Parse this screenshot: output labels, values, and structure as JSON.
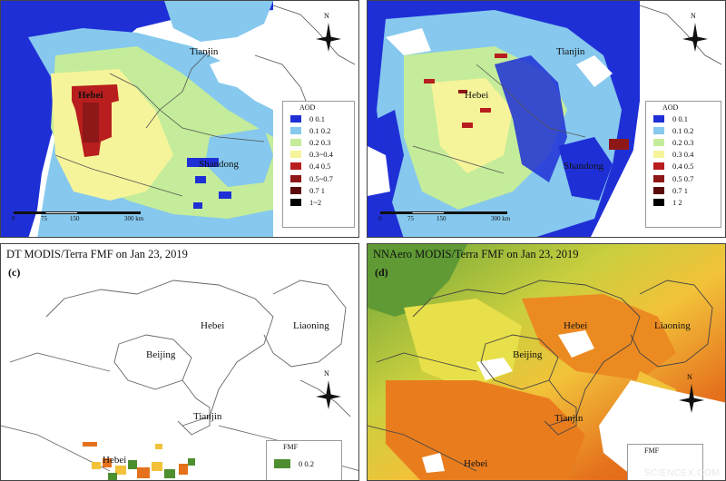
{
  "colors": {
    "aod_0_01": "#1f2fd6",
    "aod_01_02": "#86c8ee",
    "aod_02_03": "#c4ec9a",
    "aod_03_04": "#f6f49a",
    "aod_04_05": "#b81e1e",
    "aod_05_07": "#8e1717",
    "aod_07_1": "#5a0b0b",
    "aod_1_2": "#000000",
    "fmf_low": "#4d8f2f",
    "fmf_mid": "#f2c23a",
    "fmf_high": "#e5711d"
  },
  "panel_a": {
    "places": [
      "Tianjin",
      "Hebei",
      "Shandong"
    ],
    "legend": {
      "title": "AOD",
      "items": [
        "0 0.1",
        "0.1 0.2",
        "0.2 0.3",
        "0.3~0.4",
        "0.4 0.5",
        "0.5~0.7",
        "0.7 1",
        "1~2"
      ]
    },
    "scale": [
      "0",
      "75",
      "150",
      "300 km"
    ],
    "north_label": "N"
  },
  "panel_b": {
    "places": [
      "Tianjin",
      "Hebei",
      "Shandong"
    ],
    "legend": {
      "title": "AOD",
      "items": [
        "0 0.1",
        "0.1 0.2",
        "0.2 0.3",
        "0.3 0.4",
        "0.4 0.5",
        "0.5 0.7",
        "0.7 1",
        "1 2"
      ]
    },
    "scale": [
      "0",
      "75",
      "150",
      "300 km"
    ],
    "north_label": "N"
  },
  "panel_c": {
    "title": "DT MODIS/Terra FMF on Jan 23, 2019",
    "label": "(c)",
    "places": [
      "Hebei",
      "Liaoning",
      "Beijing",
      "Tianjin",
      "Hebei"
    ],
    "legend": {
      "title": "FMF",
      "items": [
        "0 0.2"
      ]
    },
    "north_label": "N"
  },
  "panel_d": {
    "title": "NNAero MODIS/Terra FMF on Jan 23, 2019",
    "label": "(d)",
    "places": [
      "Hebei",
      "Liaoning",
      "Beijing",
      "Tianjin",
      "Hebei"
    ],
    "legend": {
      "title": "FMF"
    },
    "north_label": "N"
  },
  "watermark": "SCIENCEX.COM"
}
